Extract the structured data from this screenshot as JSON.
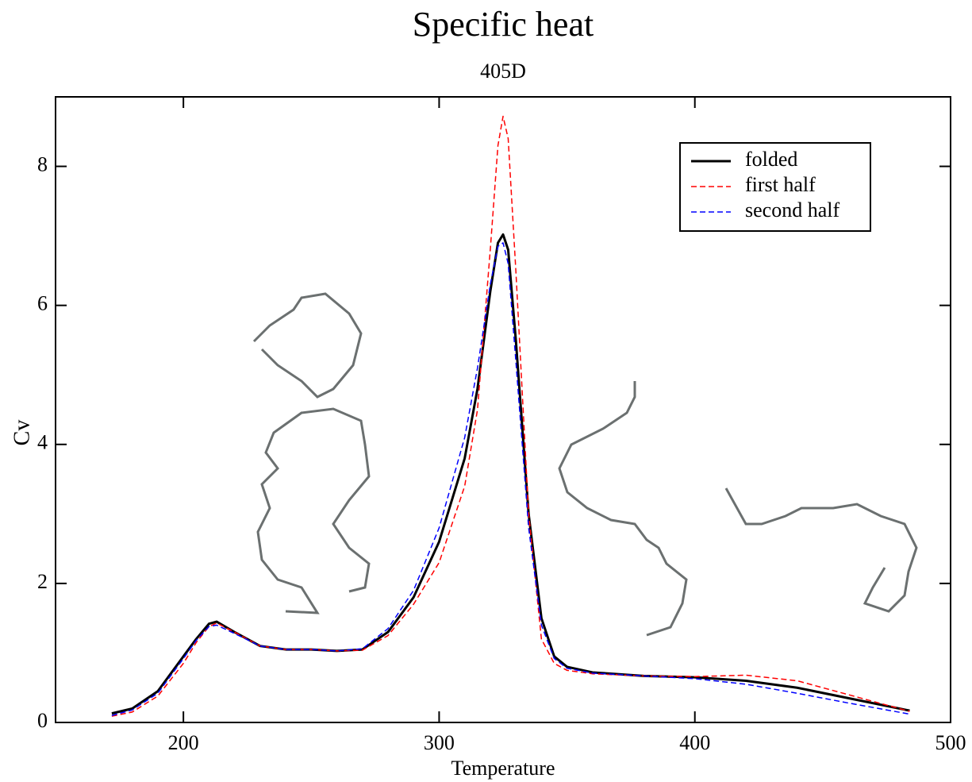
{
  "chart_data": {
    "type": "line",
    "title": "Specific heat",
    "subtitle": "405D",
    "x_label": "Temperature",
    "y_label": "Cv",
    "x": [
      172,
      180,
      190,
      200,
      205,
      210,
      213,
      220,
      230,
      240,
      250,
      260,
      270,
      280,
      290,
      300,
      310,
      315,
      320,
      323,
      325,
      327,
      330,
      335,
      340,
      345,
      350,
      360,
      380,
      400,
      420,
      440,
      460,
      484
    ],
    "series": [
      {
        "name": "folded",
        "color": "#000000",
        "dash": false,
        "width": 3,
        "values": [
          0.13,
          0.2,
          0.45,
          0.95,
          1.2,
          1.42,
          1.45,
          1.3,
          1.1,
          1.05,
          1.05,
          1.03,
          1.05,
          1.3,
          1.8,
          2.6,
          3.8,
          4.8,
          6.2,
          6.9,
          7.02,
          6.8,
          5.5,
          3.0,
          1.5,
          0.95,
          0.8,
          0.72,
          0.67,
          0.65,
          0.6,
          0.5,
          0.35,
          0.17
        ]
      },
      {
        "name": "first half",
        "color": "#ff0000",
        "dash": true,
        "width": 1.5,
        "values": [
          0.09,
          0.15,
          0.38,
          0.85,
          1.15,
          1.38,
          1.43,
          1.3,
          1.1,
          1.05,
          1.05,
          1.03,
          1.04,
          1.25,
          1.7,
          2.3,
          3.4,
          4.5,
          6.8,
          8.3,
          8.72,
          8.4,
          6.5,
          3.0,
          1.2,
          0.85,
          0.75,
          0.7,
          0.67,
          0.66,
          0.68,
          0.6,
          0.4,
          0.16
        ]
      },
      {
        "name": "second half",
        "color": "#0000ff",
        "dash": true,
        "width": 1.5,
        "values": [
          0.1,
          0.18,
          0.42,
          0.92,
          1.18,
          1.38,
          1.4,
          1.28,
          1.1,
          1.05,
          1.05,
          1.03,
          1.06,
          1.35,
          1.9,
          2.8,
          4.1,
          5.1,
          6.3,
          6.85,
          6.9,
          6.6,
          5.2,
          2.8,
          1.4,
          0.92,
          0.78,
          0.71,
          0.67,
          0.63,
          0.55,
          0.42,
          0.28,
          0.12
        ]
      }
    ],
    "xlim": [
      150,
      500
    ],
    "xticks": [
      200,
      300,
      400,
      500
    ],
    "ylim": [
      0,
      9
    ],
    "yticks": [
      0,
      2,
      4,
      6,
      8
    ],
    "legend": "top-right"
  }
}
